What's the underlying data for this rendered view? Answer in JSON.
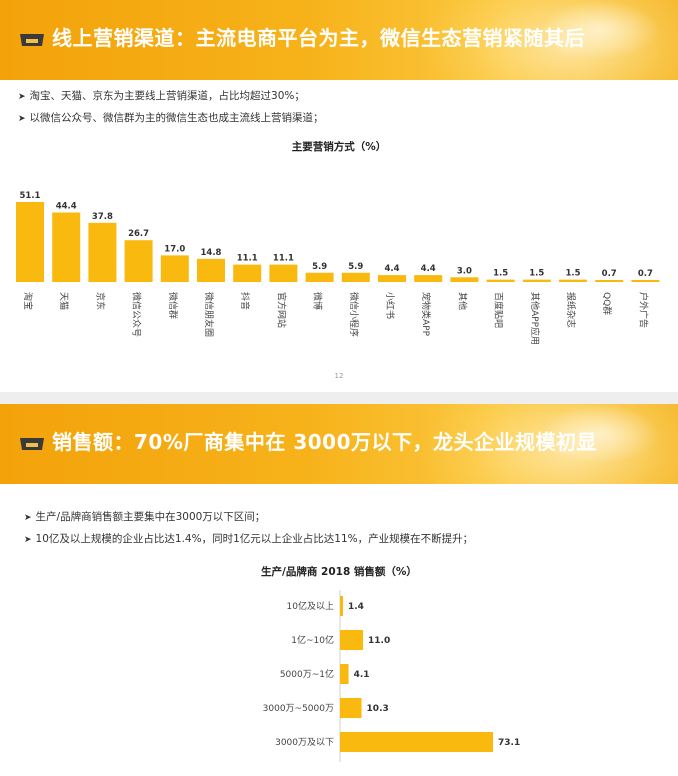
{
  "slide1": {
    "banner_title": "线上营销渠道：主流电商平台为主，微信生态营销紧随其后",
    "bullets": [
      "淘宝、天猫、京东为主要线上营销渠道，占比均超过30%；",
      "以微信公众号、微信群为主的微信生态也成主流线上营销渠道；"
    ],
    "page_number": "12"
  },
  "slide2": {
    "banner_title": "销售额：70%厂商集中在 3000万以下，龙头企业规模初显",
    "bullets": [
      "生产/品牌商销售额主要集中在3000万以下区间；",
      "10亿及以上规模的企业占比达1.4%，同时1亿元以上企业占比达11%，产业规模在不断提升；"
    ]
  },
  "colors": {
    "bar": "#f9b90e",
    "banner": "#f5a90f",
    "text": "#333333"
  },
  "chart_data": [
    {
      "type": "bar",
      "title": "主要营销方式（%）",
      "categories": [
        "淘宝",
        "天猫",
        "京东",
        "微信公众号",
        "微信群",
        "微信朋友圈",
        "抖音",
        "官方网站",
        "微博",
        "微信小程序",
        "小红书",
        "宠物类APP",
        "其他",
        "百度贴吧",
        "其他APP应用",
        "报纸杂志",
        "QQ群",
        "户外广告"
      ],
      "values": [
        51.1,
        44.4,
        37.8,
        26.7,
        17.0,
        14.8,
        11.1,
        11.1,
        5.9,
        5.9,
        4.4,
        4.4,
        3.0,
        1.5,
        1.5,
        1.5,
        0.7,
        0.7
      ],
      "value_labels": [
        "51.1",
        "44.4",
        "37.8",
        "26.7",
        "17.0",
        "14.8",
        "11.1",
        "11.1",
        "5.9",
        "5.9",
        "4.4",
        "4.4",
        "3.0",
        "1.5",
        "1.5",
        "1.5",
        "0.7",
        "0.7"
      ],
      "xlabel": "",
      "ylabel": "",
      "ylim": [
        0,
        51.1
      ],
      "grid": false
    },
    {
      "type": "bar",
      "orientation": "horizontal",
      "title": "生产/品牌商 2018 销售额（%）",
      "categories": [
        "10亿及以上",
        "1亿~10亿",
        "5000万~1亿",
        "3000万~5000万",
        "3000万及以下"
      ],
      "values": [
        1.4,
        11.0,
        4.1,
        10.3,
        73.1
      ],
      "value_labels": [
        "1.4",
        "11.0",
        "4.1",
        "10.3",
        "73.1"
      ],
      "xlabel": "",
      "ylabel": "",
      "xlim": [
        0,
        73.1
      ],
      "grid": false
    }
  ]
}
